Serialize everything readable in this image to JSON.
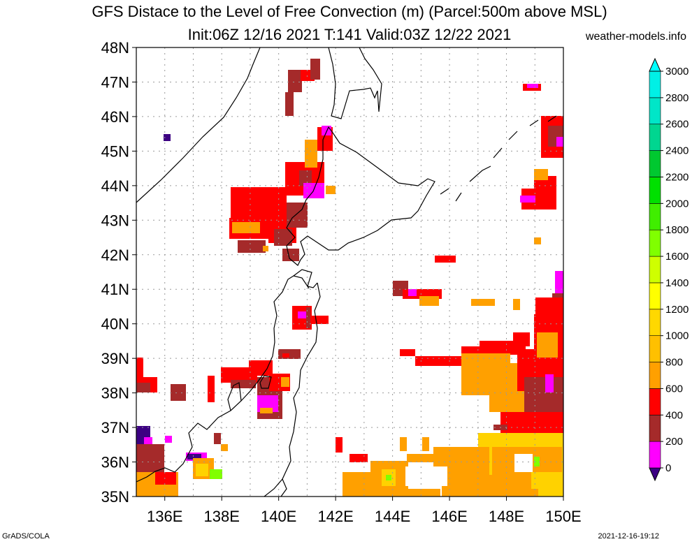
{
  "title": {
    "line1": "GFS Distace to the Level of Free Convection (m) (Parcel:500m above MSL)",
    "line2": "Init:06Z 12/16 2021 T:141 Valid:03Z 12/22 2021"
  },
  "credit": "weather-models.info",
  "footer": {
    "left": "GrADS/COLA",
    "right": "2021-12-16-19:12"
  },
  "lat_labels": [
    "35N",
    "36N",
    "37N",
    "38N",
    "39N",
    "40N",
    "41N",
    "42N",
    "43N",
    "44N",
    "45N",
    "46N",
    "47N",
    "48N"
  ],
  "lon_labels": [
    "136E",
    "138E",
    "140E",
    "142E",
    "144E",
    "146E",
    "148E",
    "150E"
  ],
  "colorbar": {
    "labels": [
      "0",
      "200",
      "400",
      "600",
      "800",
      "1000",
      "1200",
      "1400",
      "1600",
      "1800",
      "2000",
      "2200",
      "2400",
      "2600",
      "2800",
      "3000"
    ],
    "colors": [
      "#3c0082",
      "#ff00ff",
      "#a52a2a",
      "#ff0000",
      "#ffa000",
      "#ffc000",
      "#ffd800",
      "#ffff00",
      "#cfff00",
      "#80ff00",
      "#40ee00",
      "#00e000",
      "#00c830",
      "#00d690",
      "#00e6c8",
      "#00f0e6",
      "#00ffff"
    ]
  },
  "map": {
    "variable": "Distance to the Level of Free Convection",
    "units": "m",
    "lat_range": [
      35,
      48
    ],
    "lon_range": [
      135,
      150
    ],
    "colors": {
      "red": "#ff0000",
      "brown": "#a52a2a",
      "orange": "#ffa000",
      "yellow": "#ffd200",
      "magenta": "#ff00ff",
      "purple": "#3c0082",
      "green": "#80ff00"
    }
  }
}
